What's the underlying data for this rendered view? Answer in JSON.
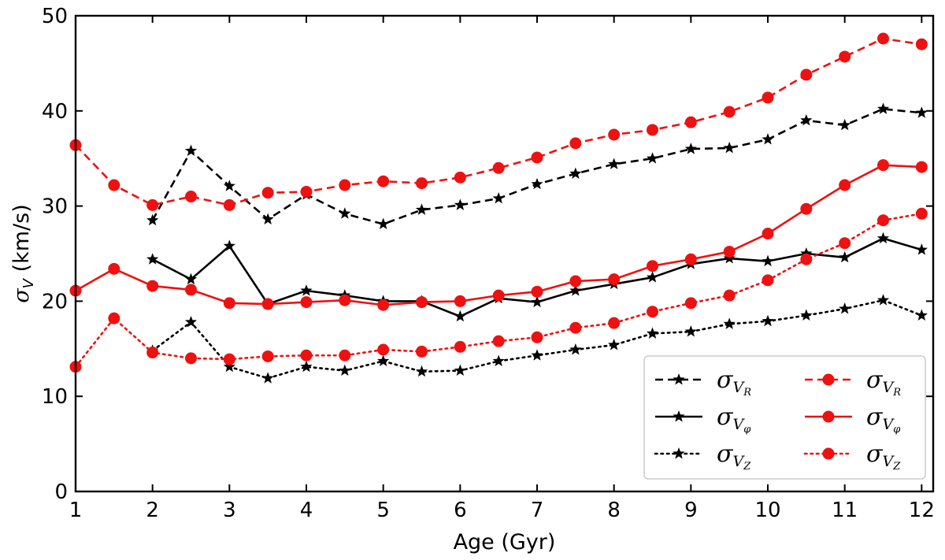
{
  "chart_data": {
    "type": "line",
    "xlabel": "Age (Gyr)",
    "ylabel": {
      "sigma": "σ",
      "sub": "V",
      "rest": " (km/s)"
    },
    "xlim": [
      1,
      12.15
    ],
    "ylim": [
      0,
      50
    ],
    "xticks": [
      1,
      2,
      3,
      4,
      5,
      6,
      7,
      8,
      9,
      10,
      11,
      12
    ],
    "yticks": [
      0,
      10,
      20,
      30,
      40,
      50
    ],
    "grid": false,
    "legend_position": "lower-right",
    "series": [
      {
        "name": "σ_VR",
        "symbol": "σ",
        "sub": "V",
        "subsub": "R",
        "color": "#000000",
        "dash": "dashed",
        "marker": "star",
        "x": [
          2,
          2.5,
          3,
          3.5,
          4,
          4.5,
          5,
          5.5,
          6,
          6.5,
          7,
          7.5,
          8,
          8.5,
          9,
          9.5,
          10,
          10.5,
          11,
          11.5,
          12
        ],
        "y": [
          28.5,
          35.8,
          32.1,
          28.6,
          31.2,
          29.2,
          28.1,
          29.6,
          30.1,
          30.8,
          32.3,
          33.4,
          34.4,
          35.0,
          36.0,
          36.1,
          37.0,
          39.0,
          38.5,
          40.2,
          39.8
        ]
      },
      {
        "name": "σ_Vφ",
        "symbol": "σ",
        "sub": "V",
        "subsub": "φ",
        "color": "#000000",
        "dash": "solid",
        "marker": "star",
        "x": [
          2,
          2.5,
          3,
          3.5,
          4,
          4.5,
          5,
          5.5,
          6,
          6.5,
          7,
          7.5,
          8,
          8.5,
          9,
          9.5,
          10,
          10.5,
          11,
          11.5,
          12
        ],
        "y": [
          24.4,
          22.3,
          25.8,
          19.7,
          21.1,
          20.6,
          20.0,
          20.0,
          18.4,
          20.3,
          19.9,
          21.1,
          21.8,
          22.5,
          23.9,
          24.5,
          24.2,
          25.0,
          24.6,
          26.6,
          25.4
        ]
      },
      {
        "name": "σ_VZ",
        "symbol": "σ",
        "sub": "V",
        "subsub": "Z",
        "color": "#000000",
        "dash": "dotted",
        "marker": "star",
        "x": [
          2,
          2.5,
          3,
          3.5,
          4,
          4.5,
          5,
          5.5,
          6,
          6.5,
          7,
          7.5,
          8,
          8.5,
          9,
          9.5,
          10,
          10.5,
          11,
          11.5,
          12
        ],
        "y": [
          14.8,
          17.8,
          13.1,
          11.9,
          13.1,
          12.7,
          13.7,
          12.6,
          12.7,
          13.7,
          14.3,
          14.9,
          15.4,
          16.6,
          16.8,
          17.6,
          17.9,
          18.5,
          19.2,
          20.1,
          18.5
        ]
      },
      {
        "name": "σ_VR",
        "symbol": "σ",
        "sub": "V",
        "subsub": "R",
        "color": "#ee1111",
        "dash": "dashed",
        "marker": "circle",
        "x": [
          1,
          1.5,
          2,
          2.5,
          3,
          3.5,
          4,
          4.5,
          5,
          5.5,
          6,
          6.5,
          7,
          7.5,
          8,
          8.5,
          9,
          9.5,
          10,
          10.5,
          11,
          11.5,
          12
        ],
        "y": [
          36.4,
          32.2,
          30.1,
          31.0,
          30.1,
          31.4,
          31.5,
          32.2,
          32.6,
          32.4,
          33.0,
          34.0,
          35.1,
          36.6,
          37.5,
          38.0,
          38.8,
          39.9,
          41.4,
          43.8,
          45.7,
          47.6,
          47.0
        ]
      },
      {
        "name": "σ_Vφ",
        "symbol": "σ",
        "sub": "V",
        "subsub": "φ",
        "color": "#ee1111",
        "dash": "solid",
        "marker": "circle",
        "x": [
          1,
          1.5,
          2,
          2.5,
          3,
          3.5,
          4,
          4.5,
          5,
          5.5,
          6,
          6.5,
          7,
          7.5,
          8,
          8.5,
          9,
          9.5,
          10,
          10.5,
          11,
          11.5,
          12
        ],
        "y": [
          21.1,
          23.4,
          21.6,
          21.2,
          19.8,
          19.7,
          19.9,
          20.1,
          19.6,
          19.9,
          20.0,
          20.6,
          21.0,
          22.1,
          22.3,
          23.7,
          24.4,
          25.2,
          27.1,
          29.7,
          32.2,
          34.3,
          34.1
        ]
      },
      {
        "name": "σ_VZ",
        "symbol": "σ",
        "sub": "V",
        "subsub": "Z",
        "color": "#ee1111",
        "dash": "dotted",
        "marker": "circle",
        "x": [
          1,
          1.5,
          2,
          2.5,
          3,
          3.5,
          4,
          4.5,
          5,
          5.5,
          6,
          6.5,
          7,
          7.5,
          8,
          8.5,
          9,
          9.5,
          10,
          10.5,
          11,
          11.5,
          12
        ],
        "y": [
          13.1,
          18.2,
          14.6,
          14.0,
          13.9,
          14.2,
          14.3,
          14.3,
          14.9,
          14.7,
          15.2,
          15.8,
          16.2,
          17.2,
          17.7,
          18.9,
          19.8,
          20.6,
          22.2,
          24.4,
          26.1,
          28.5,
          29.2
        ]
      }
    ]
  }
}
